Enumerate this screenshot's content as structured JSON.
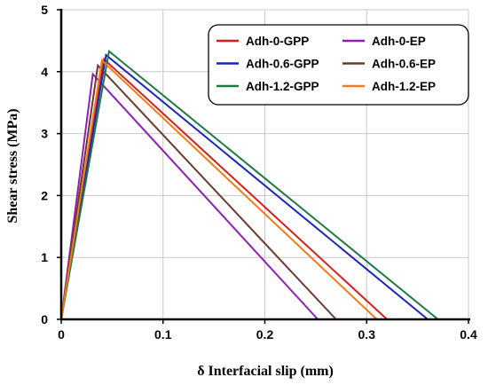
{
  "chart_data": {
    "type": "line",
    "xlabel": "δ Interfacial slip (mm)",
    "ylabel": "Shear stress (MPa)",
    "xlim": [
      0,
      0.4
    ],
    "ylim": [
      0,
      5
    ],
    "xticks": [
      "0",
      "0.1",
      "0.2",
      "0.3",
      "0.4"
    ],
    "yticks": [
      "0",
      "1",
      "2",
      "3",
      "4",
      "5"
    ],
    "grid": true,
    "legend_position": "top-right",
    "series": [
      {
        "name": "Adh-0-GPP",
        "color": "#d42020",
        "x": [
          0,
          0.042,
          0.32
        ],
        "y": [
          0,
          4.2,
          0
        ]
      },
      {
        "name": "Adh-0-EP",
        "color": "#8e1fb0",
        "x": [
          0,
          0.031,
          0.252
        ],
        "y": [
          0,
          3.96,
          0
        ]
      },
      {
        "name": "Adh-0.6-GPP",
        "color": "#1c25b8",
        "x": [
          0,
          0.044,
          0.36
        ],
        "y": [
          0,
          4.27,
          0
        ]
      },
      {
        "name": "Adh-0.6-EP",
        "color": "#6b3a2a",
        "x": [
          0,
          0.036,
          0.27
        ],
        "y": [
          0,
          4.1,
          0
        ]
      },
      {
        "name": "Adh-1.2-GPP",
        "color": "#1e7a42",
        "x": [
          0,
          0.047,
          0.37
        ],
        "y": [
          0,
          4.33,
          0
        ]
      },
      {
        "name": "Adh-1.2-EP",
        "color": "#f07c1a",
        "x": [
          0,
          0.04,
          0.31
        ],
        "y": [
          0,
          4.18,
          0
        ]
      }
    ]
  }
}
